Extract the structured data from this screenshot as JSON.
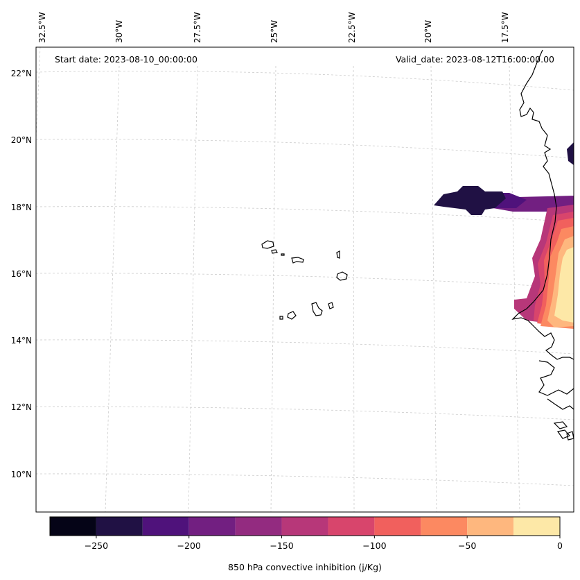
{
  "map": {
    "start_label": "Start date: 2023-08-10_00:00:00",
    "valid_label": "Valid_date: 2023-08-12T16:00:00.00",
    "lon_labels": [
      "32.5°W",
      "30°W",
      "27.5°W",
      "25°W",
      "22.5°W",
      "20°W",
      "17.5°W"
    ],
    "lat_labels": [
      "22°N",
      "20°N",
      "18°N",
      "16°N",
      "14°N",
      "12°N",
      "10°N"
    ],
    "field_name": "850 hPa convective inhibition",
    "field_units": "j/Kg"
  },
  "colorbar": {
    "label": "850 hPa convective inhibition (j/Kg)",
    "min": -275,
    "max": 0,
    "tick_values": [
      -250,
      -200,
      -150,
      -100,
      -50,
      0
    ],
    "tick_labels": [
      "−250",
      "−200",
      "−150",
      "−100",
      "−50",
      "0"
    ],
    "levels": [
      -275,
      -250,
      -225,
      -200,
      -175,
      -150,
      -125,
      -100,
      -75,
      -50,
      -25,
      0
    ],
    "colors": [
      "#050417",
      "#201144",
      "#4f127b",
      "#721f81",
      "#932b80",
      "#b73779",
      "#d8456c",
      "#f1605d",
      "#fc8961",
      "#feb77e",
      "#fde8a7"
    ]
  }
}
